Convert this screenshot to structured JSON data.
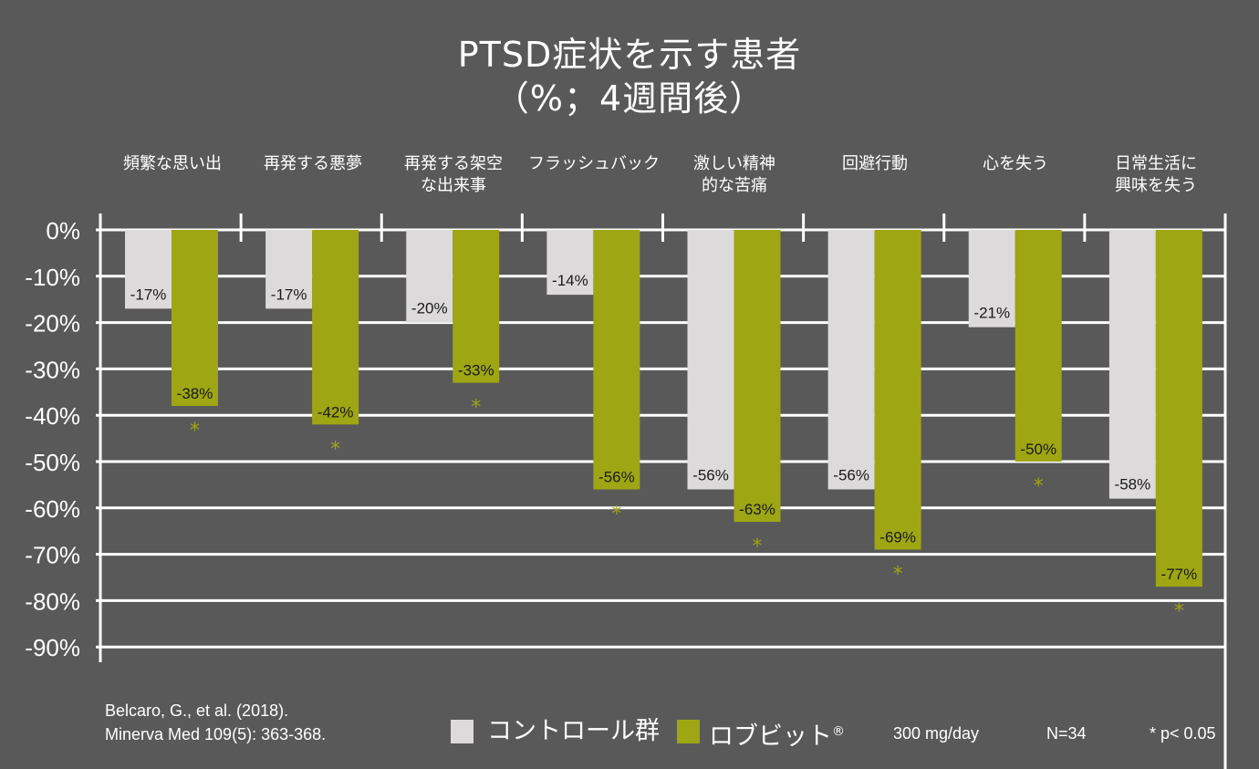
{
  "chart_data": {
    "type": "bar",
    "title": "PTSD症状を示す患者",
    "subtitle": "（%；4週間後）",
    "categories": [
      "頻繁な思い出",
      "再発する悪夢",
      "再発する架空\nな出来事",
      "フラッシュバック",
      "激しい精神\n的な苦痛",
      "回避行動",
      "心を失う",
      "日常生活に\n興味を失う"
    ],
    "series": [
      {
        "name": "コントロール群",
        "color": "#dcdadb",
        "values": [
          -17,
          -17,
          -20,
          -14,
          -56,
          -56,
          -21,
          -58
        ],
        "labels": [
          "-17%",
          "-17%",
          "-20%",
          "-14%",
          "-56%",
          "-56%",
          "-21%",
          "-58%"
        ]
      },
      {
        "name": "ロブビット®",
        "color": "#9ea613",
        "values": [
          -38,
          -42,
          -33,
          -56,
          -63,
          -69,
          -50,
          -77
        ],
        "labels": [
          "-38%",
          "-42%",
          "-33%",
          "-56%",
          "-63%",
          "-69%",
          "-50%",
          "-77%"
        ],
        "significant": [
          true,
          true,
          true,
          true,
          true,
          true,
          true,
          true
        ]
      }
    ],
    "ylim": [
      -90,
      0
    ],
    "yticks": [
      0,
      -10,
      -20,
      -30,
      -40,
      -50,
      -60,
      -70,
      -80,
      -90
    ],
    "ytick_labels": [
      "0%",
      "-10%",
      "-20%",
      "-30%",
      "-40%",
      "-50%",
      "-60%",
      "-70%",
      "-80%",
      "-90%"
    ],
    "xlabel": "",
    "ylabel": "",
    "grid": true,
    "significance_marker": "*",
    "legend_position": "bottom"
  },
  "footer": {
    "citation_line1": "Belcaro, G., et al. (2018).",
    "citation_line2": "Minerva Med 109(5): 363-368.",
    "legend_control": "コントロール群",
    "legend_treatment": "ロブビット",
    "legend_treatment_mark": "®",
    "dose": "300 mg/day",
    "n": "N=34",
    "significance_note": "* p< 0.05"
  },
  "colors": {
    "background": "#595959",
    "control": "#dcdadb",
    "treatment": "#9ea613",
    "grid": "#ffffff",
    "label_text": "#1a1a1a"
  }
}
